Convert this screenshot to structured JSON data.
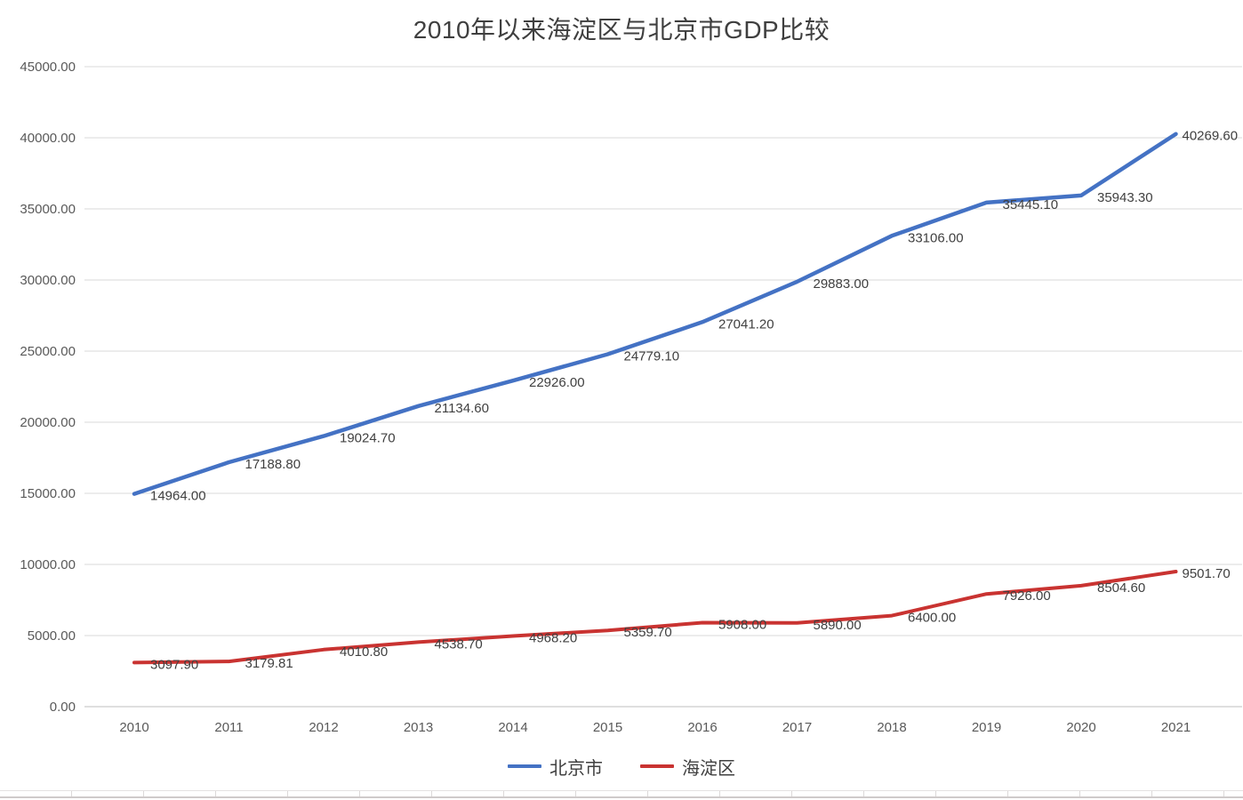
{
  "chart_data": {
    "type": "line",
    "title": "2010年以来海淀区与北京市GDP比较",
    "categories": [
      "2010",
      "2011",
      "2012",
      "2013",
      "2014",
      "2015",
      "2016",
      "2017",
      "2018",
      "2019",
      "2020",
      "2021"
    ],
    "series": [
      {
        "name": "北京市",
        "color": "#4472C4",
        "values": [
          14964.0,
          17188.8,
          19024.7,
          21134.6,
          22926.0,
          24779.1,
          27041.2,
          29883.0,
          33106.0,
          35445.1,
          35943.3,
          40269.6
        ],
        "labels": [
          "14964.00",
          "17188.80",
          "19024.70",
          "21134.60",
          "22926.00",
          "24779.10",
          "27041.20",
          "29883.00",
          "33106.00",
          "35445.10",
          "35943.30",
          "40269.60"
        ]
      },
      {
        "name": "海淀区",
        "color": "#C93331",
        "values": [
          3097.9,
          3179.81,
          4010.8,
          4538.7,
          4968.2,
          5359.7,
          5908.0,
          5890.0,
          6400.0,
          7926.0,
          8504.6,
          9501.7
        ],
        "labels": [
          "3097.90",
          "3179.81",
          "4010.80",
          "4538.70",
          "4968.20",
          "5359.70",
          "5908.00",
          "5890.00",
          "6400.00",
          "7926.00",
          "8504.60",
          "9501.70"
        ]
      }
    ],
    "xlabel": "",
    "ylabel": "",
    "ylim": [
      0,
      45000
    ],
    "ytick_step": 5000,
    "y_tick_labels": [
      "0.00",
      "5000.00",
      "10000.00",
      "15000.00",
      "20000.00",
      "25000.00",
      "30000.00",
      "35000.00",
      "40000.00",
      "45000.00"
    ],
    "grid": true,
    "data_labels_shown": true,
    "legend_position": "bottom",
    "style": {
      "gridline_color": "#D9D9D9",
      "axis_line_color": "#BFBFBF",
      "tick_label_color": "#595959",
      "data_label_color": "#404040",
      "title_color": "#3F3F3F"
    }
  }
}
